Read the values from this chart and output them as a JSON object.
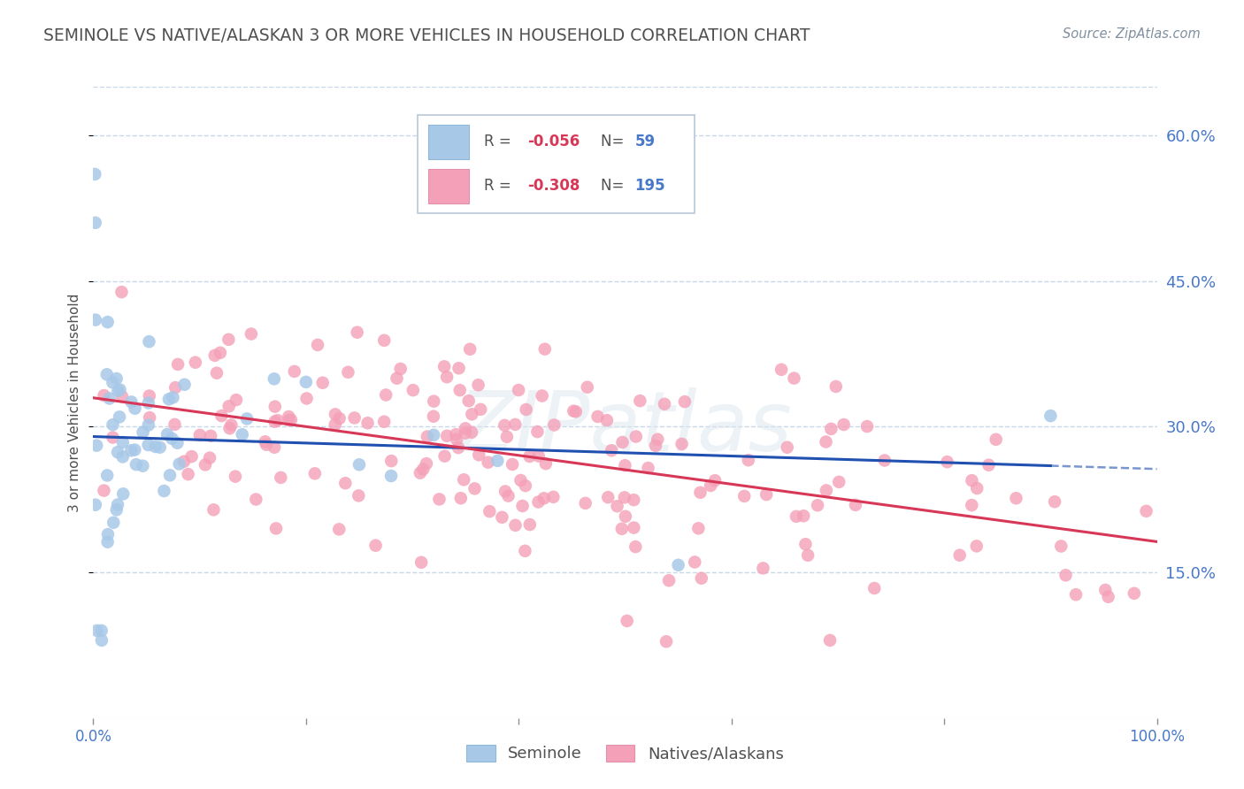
{
  "title": "SEMINOLE VS NATIVE/ALASKAN 3 OR MORE VEHICLES IN HOUSEHOLD CORRELATION CHART",
  "source": "Source: ZipAtlas.com",
  "ylabel": "3 or more Vehicles in Household",
  "ytick_labels": [
    "15.0%",
    "30.0%",
    "45.0%",
    "60.0%"
  ],
  "ytick_values": [
    0.15,
    0.3,
    0.45,
    0.6
  ],
  "xlim": [
    0.0,
    1.0
  ],
  "ylim": [
    0.0,
    0.65
  ],
  "legend1_R": "-0.056",
  "legend1_N": "59",
  "legend2_R": "-0.308",
  "legend2_N": "195",
  "seminole_color": "#a8c8e8",
  "native_color": "#f4a0b8",
  "seminole_line_color": "#2050b0",
  "native_line_color": "#d83858",
  "background_color": "#ffffff",
  "title_color": "#505050",
  "axis_label_color": "#4878c8",
  "grid_color": "#c8d8e8",
  "watermark": "ZIPatlas"
}
